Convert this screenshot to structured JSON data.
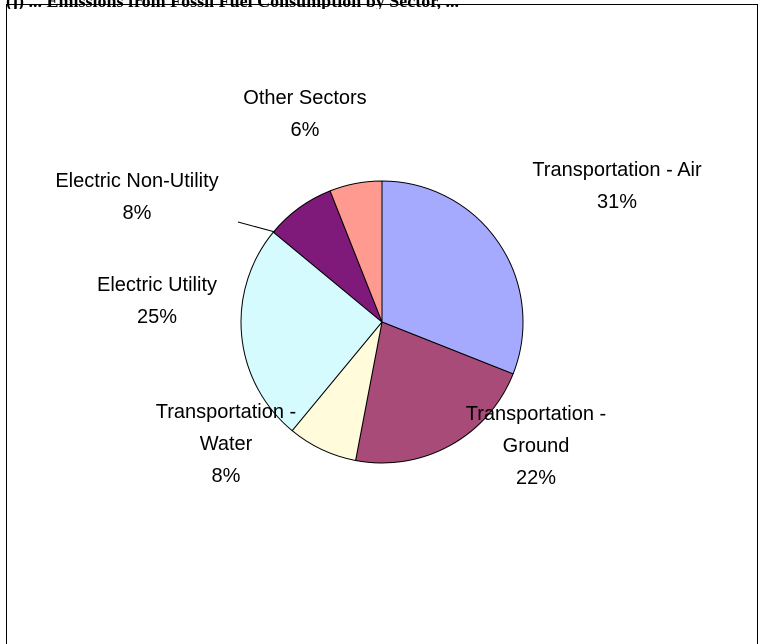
{
  "caption_fragment": "(j) ... Emissions from Fossil Fuel Consumption by Sector, ...",
  "chart_data": {
    "type": "pie",
    "slices": [
      {
        "label": [
          "Transportation - Air"
        ],
        "percent_label": "31%",
        "value": 31,
        "color": "#a6aaff"
      },
      {
        "label": [
          "Transportation -",
          "Ground"
        ],
        "percent_label": "22%",
        "value": 22,
        "color": "#a94b78"
      },
      {
        "label": [
          "Transportation -",
          "Water"
        ],
        "percent_label": "8%",
        "value": 8,
        "color": "#fffbdb"
      },
      {
        "label": [
          "Electric Utility"
        ],
        "percent_label": "25%",
        "value": 25,
        "color": "#d6fbff"
      },
      {
        "label": [
          "Electric Non-Utility"
        ],
        "percent_label": "8%",
        "value": 8,
        "color": "#7f1a7a"
      },
      {
        "label": [
          "Other Sectors"
        ],
        "percent_label": "6%",
        "value": 6,
        "color": "#ff9a90"
      }
    ]
  }
}
